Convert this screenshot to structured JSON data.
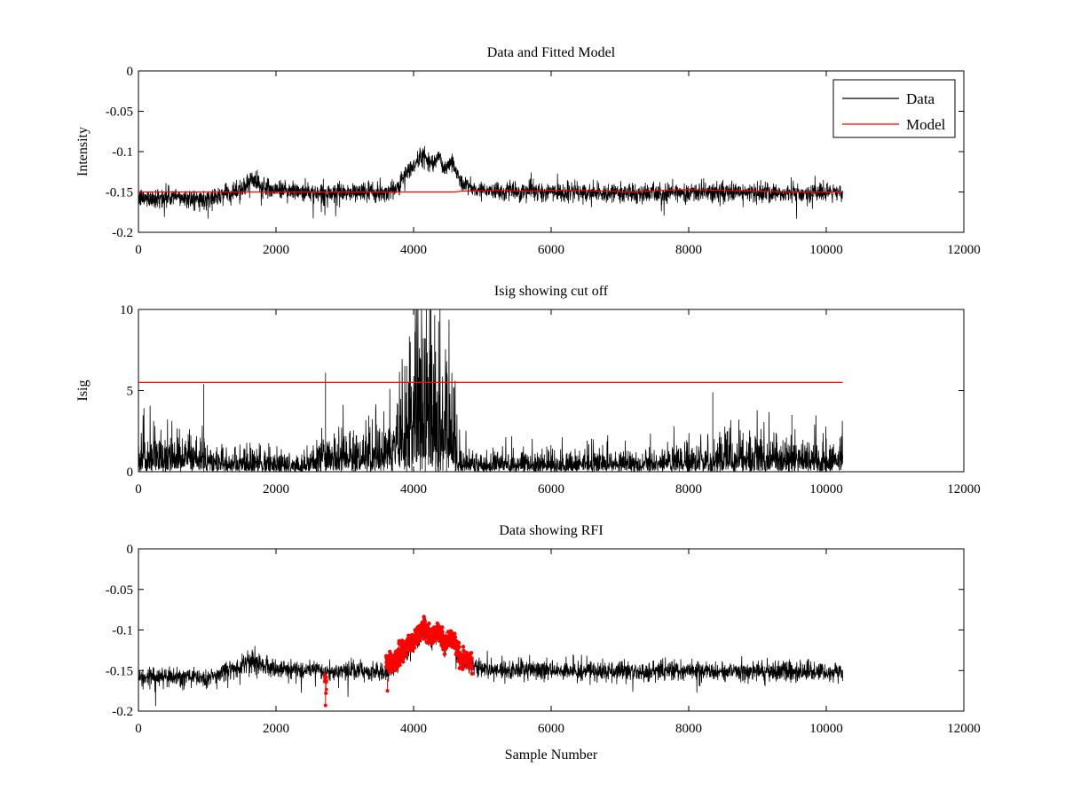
{
  "colors": {
    "data": "#000000",
    "model": "#ff0000",
    "rfi": "#ff0000",
    "background": "#ffffff"
  },
  "chart_data": [
    {
      "type": "line",
      "title": "Data and Fitted Model",
      "xlabel": "",
      "ylabel": "Intensity",
      "xlim": [
        0,
        12000
      ],
      "ylim": [
        -0.2,
        0
      ],
      "xticks": [
        0,
        2000,
        4000,
        6000,
        8000,
        10000,
        12000
      ],
      "yticks": [
        0,
        -0.05,
        -0.1,
        -0.15,
        -0.2
      ],
      "xtick_labels": [
        "0",
        "2000",
        "4000",
        "6000",
        "8000",
        "10000",
        "12000"
      ],
      "ytick_labels": [
        "0",
        "-0.05",
        "-0.1",
        "-0.15",
        "-0.2"
      ],
      "legend": {
        "position": "top-right",
        "entries": [
          "Data",
          "Model"
        ]
      },
      "series": [
        {
          "name": "Data",
          "kind": "noisy-line",
          "color": "#000000",
          "x_range": [
            0,
            10240
          ],
          "noise": 0.006,
          "envelope_x": [
            0,
            500,
            1000,
            1200,
            1500,
            1650,
            1800,
            2200,
            2700,
            3200,
            3600,
            3750,
            3900,
            4000,
            4150,
            4250,
            4350,
            4450,
            4550,
            4700,
            5000,
            6000,
            7000,
            7500,
            8000,
            9000,
            10240
          ],
          "envelope_y": [
            -0.158,
            -0.156,
            -0.16,
            -0.153,
            -0.146,
            -0.133,
            -0.145,
            -0.148,
            -0.152,
            -0.15,
            -0.151,
            -0.145,
            -0.125,
            -0.118,
            -0.103,
            -0.115,
            -0.105,
            -0.122,
            -0.11,
            -0.14,
            -0.148,
            -0.15,
            -0.151,
            -0.152,
            -0.15,
            -0.151,
            -0.152
          ]
        },
        {
          "name": "Model",
          "kind": "line",
          "color": "#ff0000",
          "x": [
            0,
            4600,
            4700,
            5200,
            5700,
            6000,
            6400,
            6800,
            7200,
            7600,
            8000,
            8500,
            9000,
            9500,
            10240
          ],
          "y": [
            -0.15,
            -0.15,
            -0.149,
            -0.148,
            -0.149,
            -0.148,
            -0.148,
            -0.149,
            -0.15,
            -0.148,
            -0.147,
            -0.148,
            -0.149,
            -0.15,
            -0.15
          ]
        }
      ]
    },
    {
      "type": "line",
      "title": "Isig showing cut off",
      "xlabel": "",
      "ylabel": "Isig",
      "xlim": [
        0,
        12000
      ],
      "ylim": [
        0,
        10
      ],
      "xticks": [
        0,
        2000,
        4000,
        6000,
        8000,
        10000,
        12000
      ],
      "yticks": [
        0,
        5,
        10
      ],
      "xtick_labels": [
        "0",
        "2000",
        "4000",
        "6000",
        "8000",
        "10000",
        "12000"
      ],
      "ytick_labels": [
        "0",
        "5",
        "10"
      ],
      "series": [
        {
          "name": "Isig",
          "kind": "spiky-line",
          "color": "#000000",
          "x_range": [
            0,
            10240
          ],
          "envelope_x": [
            0,
            900,
            1100,
            1600,
            2500,
            2650,
            3600,
            3800,
            3950,
            4100,
            4200,
            4300,
            4400,
            4500,
            4650,
            4800,
            6000,
            8000,
            8500,
            9000,
            10240
          ],
          "envelope_y": [
            1.1,
            1.2,
            0.8,
            0.7,
            0.6,
            1.3,
            1.4,
            2.5,
            3.8,
            5.5,
            5.8,
            4.2,
            5.2,
            4.4,
            1.5,
            0.6,
            0.6,
            0.8,
            1.0,
            1.1,
            1.0
          ],
          "spikes_x": [
            950,
            2720,
            3900,
            4170,
            4320,
            4480,
            9500,
            8350
          ],
          "spikes_y": [
            5.4,
            6.1,
            6.5,
            8.2,
            7.4,
            6.8,
            3.5,
            4.9
          ]
        },
        {
          "name": "Cut off",
          "kind": "line",
          "color": "#ff0000",
          "x": [
            0,
            10240
          ],
          "y": [
            5.5,
            5.5
          ]
        }
      ]
    },
    {
      "type": "line",
      "title": "Data showing RFI",
      "xlabel": "Sample Number",
      "ylabel": "",
      "xlim": [
        0,
        12000
      ],
      "ylim": [
        -0.2,
        0
      ],
      "xticks": [
        0,
        2000,
        4000,
        6000,
        8000,
        10000,
        12000
      ],
      "yticks": [
        0,
        -0.05,
        -0.1,
        -0.15,
        -0.2
      ],
      "xtick_labels": [
        "0",
        "2000",
        "4000",
        "6000",
        "8000",
        "10000",
        "12000"
      ],
      "ytick_labels": [
        "0",
        "-0.05",
        "-0.1",
        "-0.15",
        "-0.2"
      ],
      "series": [
        {
          "name": "Data",
          "kind": "noisy-line",
          "color": "#000000",
          "x_range": [
            0,
            10240
          ],
          "noise": 0.006,
          "envelope_x": [
            0,
            500,
            1000,
            1200,
            1500,
            1650,
            1800,
            2200,
            2700,
            3200,
            3600,
            3750,
            3900,
            4000,
            4150,
            4250,
            4350,
            4450,
            4550,
            4700,
            5000,
            6000,
            7000,
            7500,
            8000,
            9000,
            10240
          ],
          "envelope_y": [
            -0.158,
            -0.156,
            -0.16,
            -0.153,
            -0.146,
            -0.133,
            -0.145,
            -0.148,
            -0.152,
            -0.15,
            -0.151,
            -0.145,
            -0.125,
            -0.118,
            -0.103,
            -0.115,
            -0.105,
            -0.122,
            -0.11,
            -0.14,
            -0.148,
            -0.15,
            -0.151,
            -0.152,
            -0.15,
            -0.151,
            -0.152
          ]
        },
        {
          "name": "RFI",
          "kind": "markers",
          "color": "#ff0000",
          "x_ranges": [
            [
              2700,
              2740
            ],
            [
              3600,
              4850
            ]
          ],
          "envelope_x": [
            3600,
            3750,
            3900,
            4000,
            4150,
            4250,
            4350,
            4450,
            4550,
            4700,
            4850
          ],
          "envelope_y": [
            -0.145,
            -0.135,
            -0.118,
            -0.112,
            -0.095,
            -0.11,
            -0.1,
            -0.118,
            -0.108,
            -0.135,
            -0.14
          ],
          "outliers_x": [
            2720,
            2725,
            3620
          ],
          "outliers_y": [
            -0.193,
            -0.178,
            -0.175
          ]
        }
      ]
    }
  ]
}
